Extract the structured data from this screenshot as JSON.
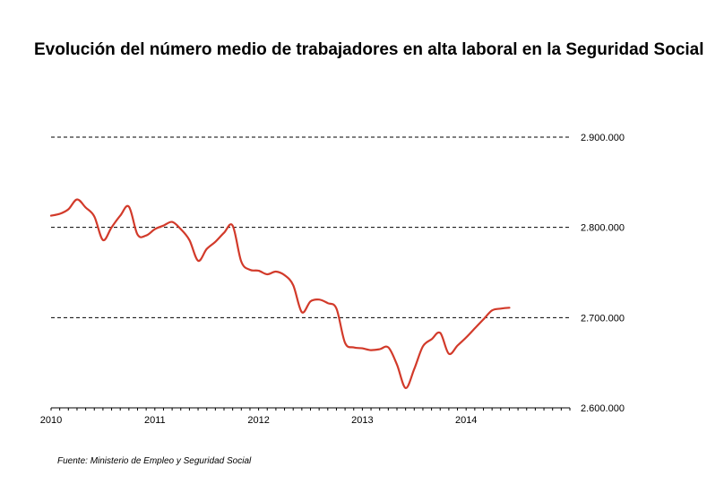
{
  "title": "Evolución del número medio de trabajadores en alta laboral en la Seguridad Social",
  "source": "Fuente: Ministerio de Empleo y Seguridad Social",
  "chart_data": {
    "type": "line",
    "title": "Evolución del número medio de trabajadores en alta laboral en la Seguridad Social",
    "xlabel": "",
    "ylabel": "",
    "x_ticks": [
      "2010",
      "2011",
      "2012",
      "2013",
      "2014"
    ],
    "y_ticks": [
      "2.900.000",
      "2.800.000",
      "2.700.000",
      "2.600.000"
    ],
    "y_tick_values": [
      2900000,
      2800000,
      2700000,
      2600000
    ],
    "xlim": [
      2010.0,
      2015.0
    ],
    "ylim": [
      2600000,
      2900000
    ],
    "grid": "horizontal dashed",
    "y_axis_position": "right",
    "series_color": "#d23a2a",
    "series": [
      {
        "x": [
          2010.0,
          2010.083,
          2010.167,
          2010.25,
          2010.333,
          2010.417,
          2010.5,
          2010.583,
          2010.667,
          2010.75,
          2010.833,
          2010.917,
          2011.0,
          2011.083,
          2011.167,
          2011.25,
          2011.333,
          2011.417,
          2011.5,
          2011.583,
          2011.667,
          2011.75,
          2011.833,
          2011.917,
          2012.0,
          2012.083,
          2012.167,
          2012.25,
          2012.333,
          2012.417,
          2012.5,
          2012.583,
          2012.667,
          2012.75,
          2012.833,
          2012.917,
          2013.0,
          2013.083,
          2013.167,
          2013.25,
          2013.333,
          2013.417,
          2013.5,
          2013.583,
          2013.667,
          2013.75,
          2013.833,
          2013.917,
          2014.0,
          2014.083,
          2014.167,
          2014.25,
          2014.333,
          2014.417
        ],
        "values": [
          2813000,
          2815000,
          2820000,
          2831000,
          2822000,
          2812000,
          2786000,
          2800000,
          2813000,
          2823000,
          2792000,
          2791000,
          2798000,
          2802000,
          2806000,
          2798000,
          2786000,
          2763000,
          2776000,
          2784000,
          2794000,
          2802000,
          2762000,
          2753000,
          2752000,
          2748000,
          2751000,
          2747000,
          2736000,
          2706000,
          2718000,
          2720000,
          2716000,
          2710000,
          2672000,
          2667000,
          2666000,
          2664000,
          2665000,
          2667000,
          2648000,
          2622000,
          2643000,
          2668000,
          2676000,
          2683000,
          2660000,
          2669000,
          2678000,
          2688000,
          2698000,
          2708000,
          2710000,
          2711000
        ]
      }
    ]
  }
}
